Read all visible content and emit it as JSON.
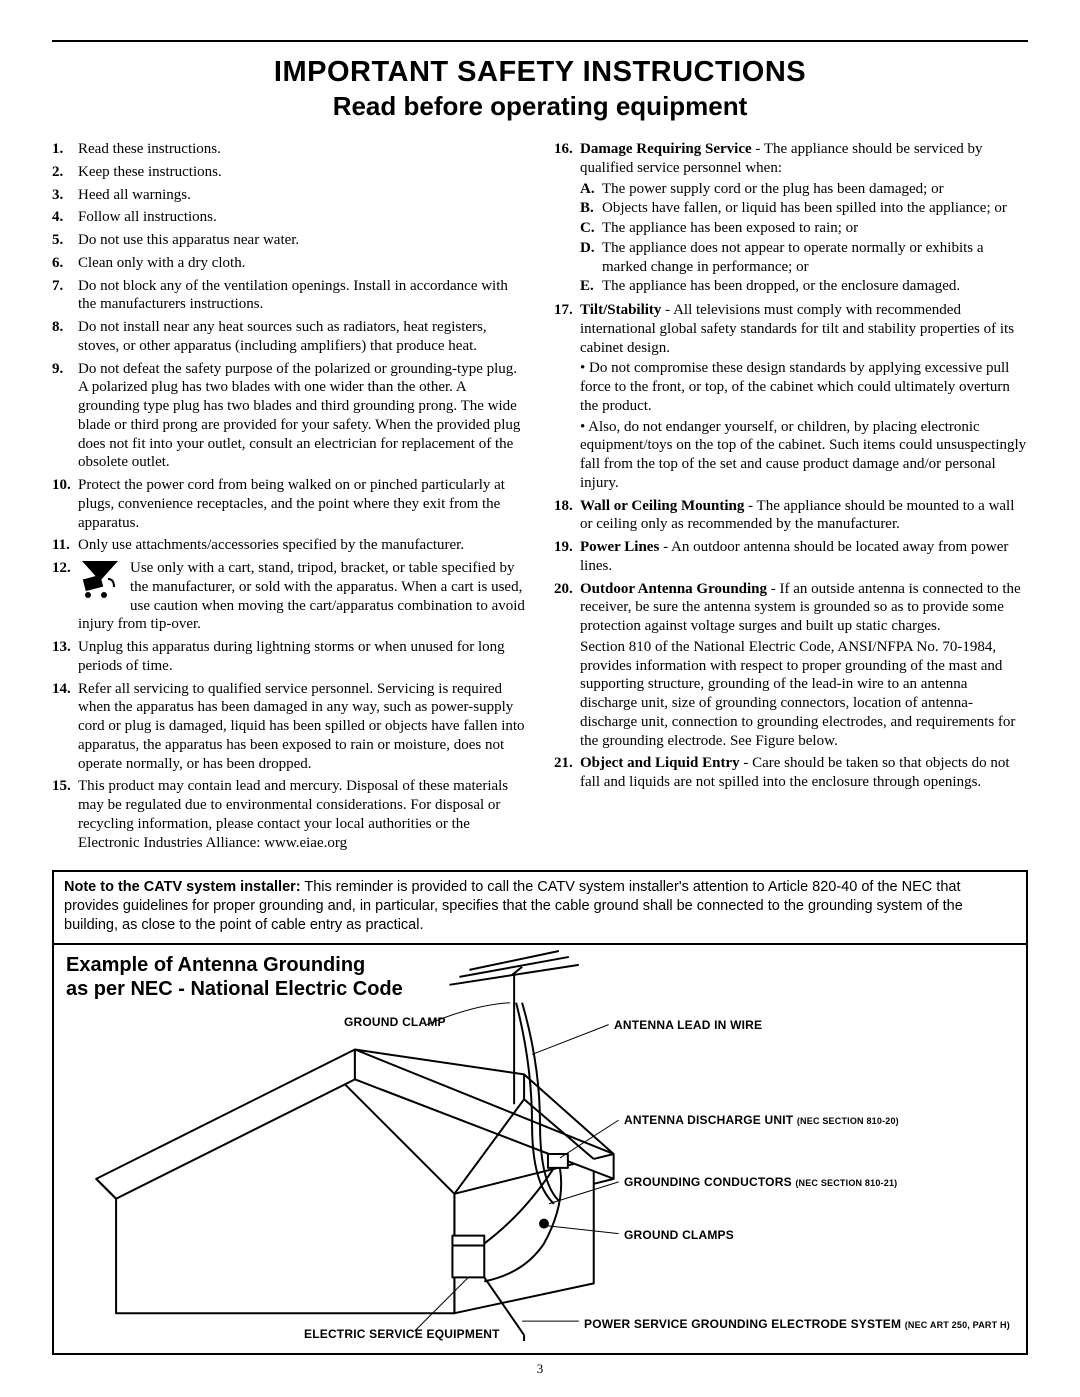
{
  "title": {
    "line1": "IMPORTANT SAFETY INSTRUCTIONS",
    "line2": "Read before operating equipment"
  },
  "left_items": [
    {
      "n": "1.",
      "text": "Read these instructions."
    },
    {
      "n": "2.",
      "text": "Keep these instructions."
    },
    {
      "n": "3.",
      "text": "Heed all warnings."
    },
    {
      "n": "4.",
      "text": "Follow all instructions."
    },
    {
      "n": "5.",
      "text": "Do not use this apparatus near water."
    },
    {
      "n": "6.",
      "text": "Clean only with a dry cloth."
    },
    {
      "n": "7.",
      "text": "Do not block any of the ventilation openings. Install in accordance with the manufacturers instructions."
    },
    {
      "n": "8.",
      "text": "Do not install near any heat sources such as radiators, heat registers, stoves, or other apparatus (including amplifiers) that produce heat."
    },
    {
      "n": "9.",
      "text": "Do not defeat the safety purpose of the polarized or grounding-type plug. A polarized plug has two blades with one wider than the other. A grounding type plug has two blades and third grounding prong. The wide blade or third prong are provided for your safety. When the provided plug does not fit into your outlet, consult an electrician for replacement of the obsolete outlet."
    },
    {
      "n": "10.",
      "text": "Protect the power cord from being walked on or pinched particularly at plugs, convenience receptacles, and the point where they exit from the apparatus."
    },
    {
      "n": "11.",
      "text": "Only use attachments/accessories specified by the manufacturer."
    },
    {
      "n": "12.",
      "icon": true,
      "text": "Use only with a cart, stand, tripod, bracket, or table specified by the manufacturer, or sold with the apparatus. When a cart is used, use caution when moving the cart/apparatus combination to avoid injury from tip-over."
    },
    {
      "n": "13.",
      "text": "Unplug this apparatus during lightning storms or when unused for long periods of time."
    },
    {
      "n": "14.",
      "text": "Refer all servicing to qualified service personnel. Servicing is required when the apparatus has been damaged in any way, such as power-supply cord or plug is damaged, liquid has been spilled or objects have fallen into apparatus, the apparatus has been exposed to rain or moisture, does not operate normally, or has been dropped."
    },
    {
      "n": "15.",
      "text": "This product may contain lead and mercury. Disposal of these materials may be regulated due to environmental considerations. For disposal or recycling information, please contact your local authorities or the Electronic Industries Alliance: www.eiae.org"
    }
  ],
  "right_items": [
    {
      "n": "16.",
      "lead": "Damage Requiring Service",
      "text": " - The appliance should be serviced by qualified service personnel when:",
      "subs": [
        {
          "l": "A.",
          "t": "The power supply cord or the plug has been damaged; or"
        },
        {
          "l": "B.",
          "t": "Objects have fallen, or liquid has been spilled into the appliance; or"
        },
        {
          "l": "C.",
          "t": "The appliance has been exposed to rain; or"
        },
        {
          "l": "D.",
          "t": "The appliance does not appear to operate normally or exhibits a marked change in performance; or"
        },
        {
          "l": "E.",
          "t": "The appliance has been dropped, or the enclosure damaged."
        }
      ]
    },
    {
      "n": "17.",
      "lead": "Tilt/Stability",
      "text": " - All televisions must comply with recommended international global safety standards for tilt and stability properties of its cabinet design.",
      "paras": [
        "• Do not compromise these design standards by applying excessive pull force to the front, or top, of the cabinet which could ultimately overturn the product.",
        "• Also, do not endanger yourself, or children, by placing electronic equipment/toys on the top of the cabinet. Such items could unsuspectingly fall from the top of the set and cause product damage and/or personal injury."
      ]
    },
    {
      "n": "18.",
      "lead": "Wall or Ceiling Mounting",
      "text": " - The appliance should be mounted to a wall or ceiling only as recommended by the manufacturer."
    },
    {
      "n": "19.",
      "lead": "Power Lines",
      "text": " - An outdoor antenna should be located away from power lines."
    },
    {
      "n": "20.",
      "lead": "Outdoor Antenna Grounding",
      "text": " - If an outside antenna is connected to the receiver, be sure the antenna system is grounded so as to provide some protection against voltage surges and built up static charges.",
      "paras": [
        "Section 810 of the National Electric Code, ANSI/NFPA No. 70-1984, provides information with respect to proper grounding of the mast and supporting structure, grounding of the lead-in wire to an antenna discharge unit, size of grounding connectors, location of antenna-discharge unit, connection to grounding electrodes, and requirements for the grounding electrode. See Figure below."
      ]
    },
    {
      "n": "21.",
      "lead": "Object and Liquid Entry",
      "text": " - Care should be taken so that objects do not fall and liquids are not spilled into the enclosure through openings."
    }
  ],
  "note": {
    "lead": "Note to the CATV system installer:",
    "text": " This reminder is provided to call the CATV system installer's attention to Article 820-40 of the NEC that provides guidelines for proper grounding and, in particular, specifies that the cable ground shall be connected to the grounding system of the building, as close to the point of cable entry as practical."
  },
  "diagram": {
    "title_l1": "Example of Antenna Grounding",
    "title_l2": "as per NEC - National Electric Code",
    "labels": {
      "ground_clamp_top": "GROUND CLAMP",
      "antenna_lead": "ANTENNA LEAD IN WIRE",
      "discharge_unit": "ANTENNA DISCHARGE UNIT",
      "discharge_unit_sub": "(NEC SECTION 810-20)",
      "grounding_conductors": "GROUNDING CONDUCTORS",
      "grounding_conductors_sub": "(NEC SECTION 810-21)",
      "ground_clamps": "GROUND CLAMPS",
      "electric_service": "ELECTRIC SERVICE EQUIPMENT",
      "power_service": "POWER SERVICE GROUNDING ELECTRODE SYSTEM",
      "power_service_sub": "(NEC ART 250, PART H)"
    },
    "colors": {
      "stroke": "#000000",
      "bg": "#ffffff"
    },
    "line_width": 2,
    "thin_line_width": 1
  },
  "page_number": "3"
}
